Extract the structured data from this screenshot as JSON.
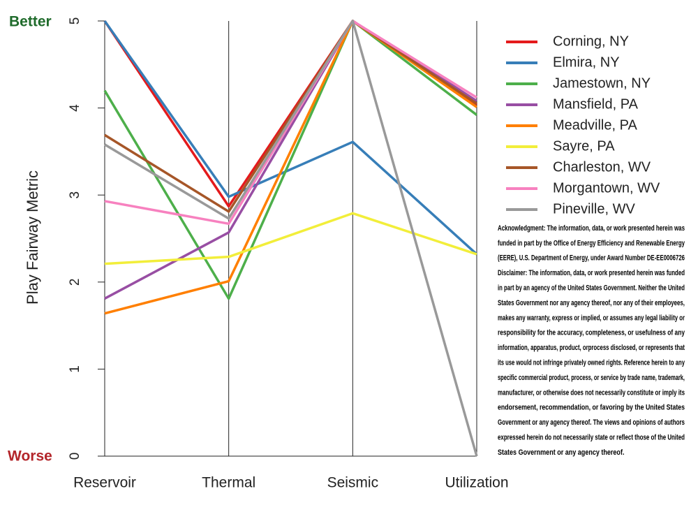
{
  "chart_data": {
    "type": "parallel",
    "y_label": "Play Fairway Metric",
    "top_annotation": "Better",
    "bottom_annotation": "Worse",
    "categories": [
      "Reservoir",
      "Thermal",
      "Seismic",
      "Utilization"
    ],
    "ylim": [
      0,
      5
    ],
    "yticks": [
      0,
      1,
      2,
      3,
      4,
      5
    ],
    "series": [
      {
        "name": "Corning, NY",
        "color": "#e41a1c",
        "values": [
          5,
          2.87,
          5,
          4.04
        ]
      },
      {
        "name": "Elmira, NY",
        "color": "#377eb8",
        "values": [
          5,
          2.98,
          3.61,
          2.32
        ]
      },
      {
        "name": "Jamestown, NY",
        "color": "#4daf4a",
        "values": [
          4.2,
          1.81,
          5,
          3.92
        ]
      },
      {
        "name": "Mansfield, PA",
        "color": "#984ea3",
        "values": [
          1.81,
          2.57,
          5,
          4.08
        ]
      },
      {
        "name": "Meadville, PA",
        "color": "#ff7f00",
        "values": [
          1.64,
          2.01,
          5,
          4.01
        ]
      },
      {
        "name": "Sayre, PA",
        "color": "#f2ee3a",
        "values": [
          2.21,
          2.29,
          2.79,
          2.32
        ]
      },
      {
        "name": "Charleston, WV",
        "color": "#a65628",
        "values": [
          3.69,
          2.81,
          5,
          4.05
        ]
      },
      {
        "name": "Morgantown, WV",
        "color": "#f781bf",
        "values": [
          2.93,
          2.67,
          5,
          4.12
        ]
      },
      {
        "name": "Pineville, WV",
        "color": "#999999",
        "values": [
          3.58,
          2.73,
          5,
          0
        ]
      }
    ],
    "acknowledgment_lines": [
      "Acknowledgment: The information, data, or work presented herein was",
      "funded in part by the Office of Energy Efficiency and Renewable Energy",
      "(EERE), U.S. Department of Energy, under Award Number DE-EE0006726",
      "Disclaimer: The information, data, or work presented herein was funded",
      "in part by an agency of the United States Government. Neither the United",
      "States Government nor any agency thereof, nor any of their employees,",
      " makes any warranty, express or implied, or assumes any legal liability or",
      "responsibility for the accuracy, completeness, or usefulness of any",
      "information, apparatus, product, orprocess disclosed, or represents that",
      "its use would not infringe privately owned rights. Reference herein to any",
      "specific commercial product, process, or service by trade name, trademark,",
      "manufacturer, or otherwise does not necessarily constitute or imply its",
      "endorsement, recommendation, or favoring by the United States",
      "Government or any agency thereof. The views and opinions of authors",
      "expressed herein do not necessarily state or reflect those of the United",
      "States Government or any agency thereof."
    ]
  }
}
